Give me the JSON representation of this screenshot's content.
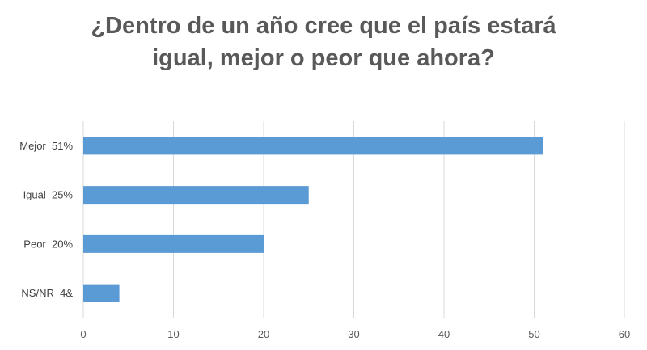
{
  "chart_data": {
    "type": "bar",
    "orientation": "horizontal",
    "title_lines": [
      "¿Dentro de un año cree que el país estará",
      "igual, mejor o peor que ahora?"
    ],
    "categories": [
      "Mejor  51%",
      "Igual  25%",
      "Peor  20%",
      "NS/NR  4&"
    ],
    "values": [
      51,
      25,
      20,
      4
    ],
    "xlim": [
      0,
      60
    ],
    "xticks": [
      0,
      10,
      20,
      30,
      40,
      50,
      60
    ],
    "xlabel": "",
    "ylabel": "",
    "grid": "vertical",
    "legend": "none",
    "bar_color": "#5b9bd5",
    "grid_color": "#d9d9d9"
  }
}
